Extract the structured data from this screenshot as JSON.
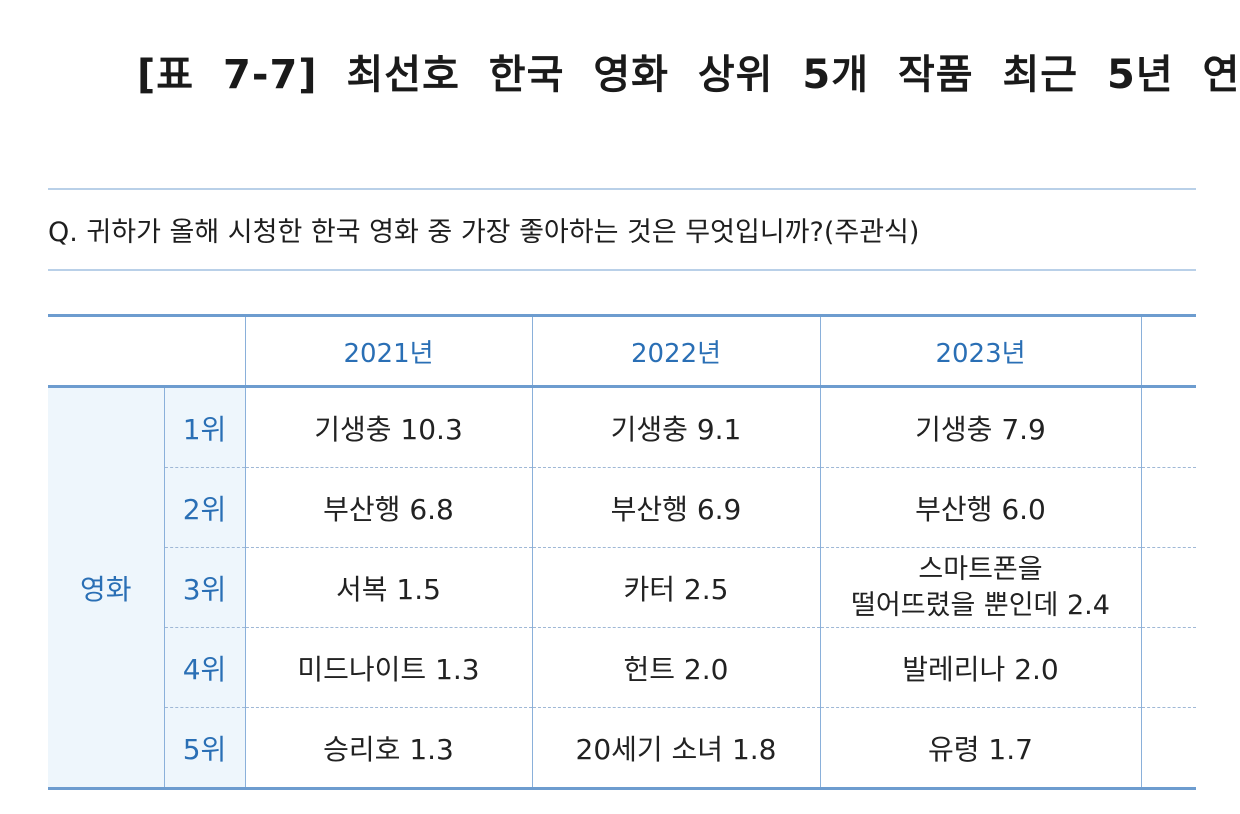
{
  "title": "[표 7-7] 최선호 한국 영화 상위 5개 작품 최근 5년 연",
  "question": "Q. 귀하가 올해 시청한 한국 영화 중 가장 좋아하는 것은 무엇입니까?(주관식)",
  "table": {
    "years": [
      "2021년",
      "2022년",
      "2023년",
      ""
    ],
    "category": "영화",
    "rows": [
      {
        "rank": "1위",
        "cells": [
          "기생충 10.3",
          "기생충 9.1",
          "기생충 7.9",
          ""
        ]
      },
      {
        "rank": "2위",
        "cells": [
          "부산행 6.8",
          "부산행 6.9",
          "부산행 6.0",
          ""
        ]
      },
      {
        "rank": "3위",
        "cells": [
          "서복 1.5",
          "카터 2.5",
          "스마트폰을",
          ""
        ],
        "cell3_line2": "떨어뜨렸을 뿐인데 2.4"
      },
      {
        "rank": "4위",
        "cells": [
          "미드나이트 1.3",
          "헌트 2.0",
          "발레리나 2.0",
          ""
        ]
      },
      {
        "rank": "5위",
        "cells": [
          "승리호 1.3",
          "20세기 소녀 1.8",
          "유령 1.7",
          ""
        ]
      }
    ]
  },
  "colors": {
    "accent_blue": "#2a6fb5",
    "header_line": "#6d9ccf",
    "label_bg": "#eef6fc"
  }
}
